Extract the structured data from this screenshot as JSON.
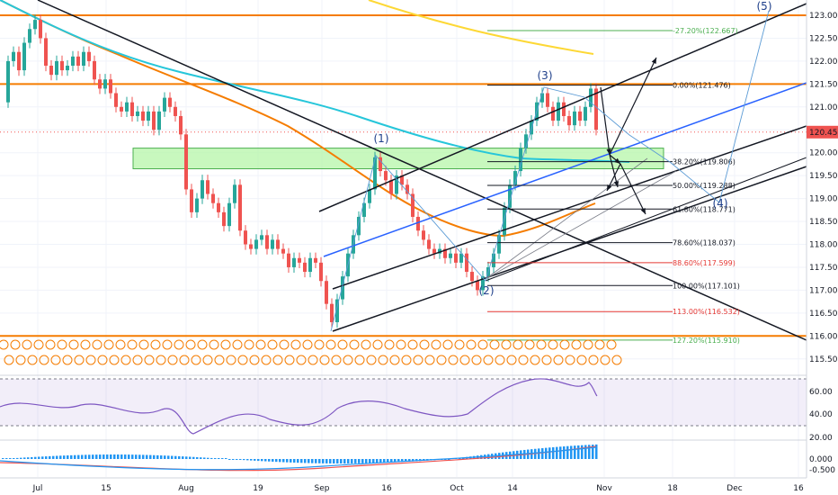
{
  "chart_data": {
    "type": "candlestick",
    "price_axis": {
      "range": [
        115.0,
        123.25
      ],
      "ticks": [
        "123.000",
        "122.500",
        "122.000",
        "121.500",
        "121.000",
        "120.500",
        "120.000",
        "119.500",
        "119.000",
        "118.500",
        "118.000",
        "117.500",
        "117.000",
        "116.500",
        "116.000",
        "115.500"
      ],
      "last_price": "120.450"
    },
    "time_axis": {
      "labels": [
        "Jul",
        "15",
        "Aug",
        "19",
        "Sep",
        "16",
        "Oct",
        "14",
        "Nov",
        "18",
        "Dec",
        "16"
      ]
    },
    "horizontal_levels": [
      {
        "price": 123.0,
        "color": "#f57c00"
      },
      {
        "price": 121.5,
        "color": "#f57c00"
      },
      {
        "price": 116.0,
        "color": "#f57c00"
      }
    ],
    "support_zone": {
      "top": 120.1,
      "bottom": 119.65,
      "color": "#b6f5a8"
    },
    "fibonacci": [
      {
        "label": "-27.20%(122.667)",
        "price": 122.667,
        "color": "#4caf50"
      },
      {
        "label": "0.00%(121.476)",
        "price": 121.476,
        "color": "#131722"
      },
      {
        "label": "38.20%(119.806)",
        "price": 119.806,
        "color": "#131722"
      },
      {
        "label": "50.00%(119.288)",
        "price": 119.288,
        "color": "#131722"
      },
      {
        "label": "61.80%(118.771)",
        "price": 118.771,
        "color": "#131722"
      },
      {
        "label": "78.60%(118.037)",
        "price": 118.037,
        "color": "#131722"
      },
      {
        "label": "88.60%(117.599)",
        "price": 117.599,
        "color": "#e53935"
      },
      {
        "label": "100.00%(117.101)",
        "price": 117.101,
        "color": "#131722"
      },
      {
        "label": "113.00%(116.532)",
        "price": 116.532,
        "color": "#e53935"
      },
      {
        "label": "127.20%(115.910)",
        "price": 115.91,
        "color": "#4caf50"
      }
    ],
    "wave_labels": [
      "(1)",
      "(2)",
      "(3)",
      "(4)",
      "(5)"
    ],
    "rsi": {
      "ticks": [
        "60.00",
        "40.00",
        "20.00"
      ],
      "upper": 70,
      "lower": 30
    },
    "macd": {
      "ticks": [
        "0.000",
        "-0.500"
      ]
    }
  }
}
